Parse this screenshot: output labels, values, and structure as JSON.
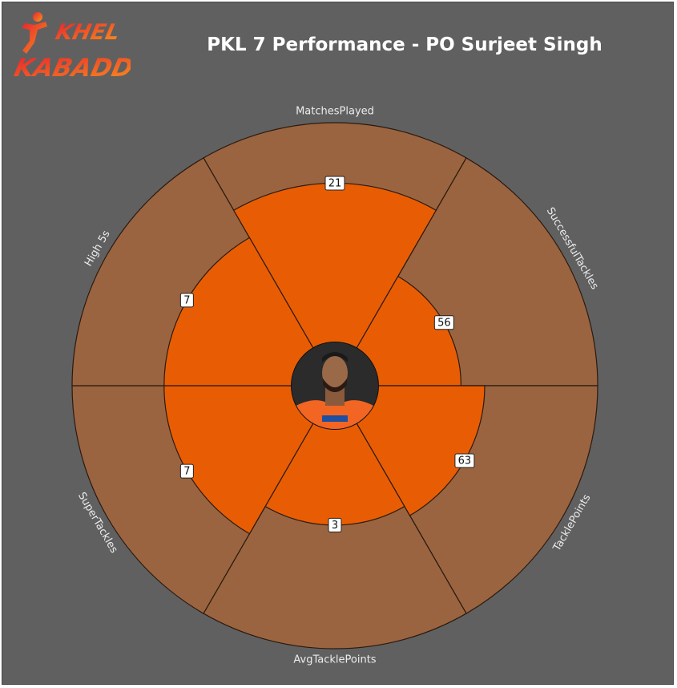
{
  "brand": {
    "logo_line1": "KHEL",
    "logo_line2": "KABADDI"
  },
  "colors": {
    "background": "#606060",
    "outer_ring": "#9a6440",
    "value_fill": "#e85d04",
    "stroke": "#2a1a10",
    "logo_gradient_start": "#e8232e",
    "logo_gradient_end": "#f7941d"
  },
  "center_image": {
    "icon": "player-photo",
    "jersey_color": "#f26522"
  },
  "chart_data": {
    "type": "radial-bar",
    "title": "PKL 7 Performance - PO Surjeet Singh",
    "categories": [
      "MatchesPlayed",
      "SuccessfulTackles",
      "TacklePoints",
      "AvgTacklePoints",
      "SuperTackles",
      "High 5s"
    ],
    "values": [
      21,
      56,
      63,
      3,
      7,
      7
    ],
    "fill_fraction": [
      0.77,
      0.48,
      0.57,
      0.53,
      0.65,
      0.65
    ]
  }
}
